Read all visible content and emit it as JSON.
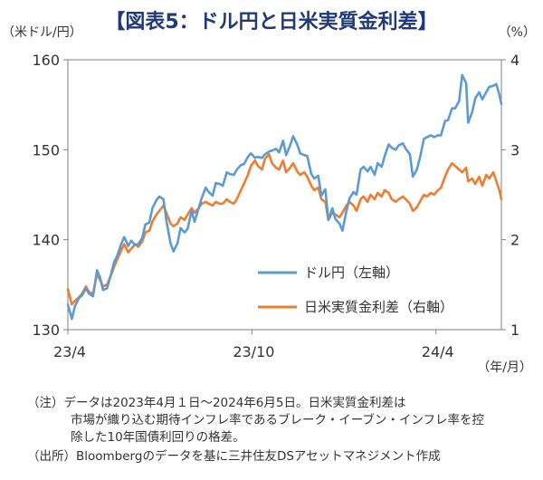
{
  "title": "【図表5：ドル円と日米実質金利差】",
  "chart_data": {
    "type": "line",
    "ylabel_left": "（米ドル/円）",
    "ylabel_right": "（%）",
    "xlabel": "（年/月）",
    "ylim_left": [
      130,
      160
    ],
    "ylim_right": [
      1,
      4
    ],
    "yticks_left": [
      "130",
      "140",
      "150",
      "160"
    ],
    "yticks_right": [
      "1",
      "2",
      "3",
      "4"
    ],
    "x_ticks": [
      {
        "date": "2023-04-01",
        "label": "23/4"
      },
      {
        "date": "2023-10-01",
        "label": "23/10"
      },
      {
        "date": "2024-04-01",
        "label": "24/4"
      }
    ],
    "x_range": [
      "2023-04-01",
      "2024-06-05"
    ],
    "legend_position": "lower-right",
    "series": [
      {
        "name": "ドル円（左軸）",
        "axis": "left",
        "color": "#5b9bd5",
        "points": [
          [
            "2023-04-01",
            132.8
          ],
          [
            "2023-04-05",
            131.2
          ],
          [
            "2023-04-08",
            132.6
          ],
          [
            "2023-04-12",
            133.5
          ],
          [
            "2023-04-15",
            133.8
          ],
          [
            "2023-04-19",
            134.6
          ],
          [
            "2023-04-22",
            134.0
          ],
          [
            "2023-04-26",
            133.7
          ],
          [
            "2023-04-30",
            136.6
          ],
          [
            "2023-05-03",
            135.8
          ],
          [
            "2023-05-06",
            134.4
          ],
          [
            "2023-05-10",
            134.6
          ],
          [
            "2023-05-13",
            135.8
          ],
          [
            "2023-05-17",
            137.5
          ],
          [
            "2023-05-20",
            138.2
          ],
          [
            "2023-05-24",
            139.5
          ],
          [
            "2023-05-27",
            140.3
          ],
          [
            "2023-05-31",
            139.3
          ],
          [
            "2023-06-03",
            139.9
          ],
          [
            "2023-06-07",
            139.4
          ],
          [
            "2023-06-10",
            139.5
          ],
          [
            "2023-06-14",
            140.2
          ],
          [
            "2023-06-17",
            141.7
          ],
          [
            "2023-06-21",
            141.9
          ],
          [
            "2023-06-24",
            143.5
          ],
          [
            "2023-06-28",
            144.4
          ],
          [
            "2023-07-01",
            144.8
          ],
          [
            "2023-07-05",
            144.5
          ],
          [
            "2023-07-08",
            142.1
          ],
          [
            "2023-07-12",
            139.6
          ],
          [
            "2023-07-15",
            138.7
          ],
          [
            "2023-07-19",
            139.6
          ],
          [
            "2023-07-22",
            141.3
          ],
          [
            "2023-07-26",
            140.8
          ],
          [
            "2023-07-29",
            141.2
          ],
          [
            "2023-08-02",
            143.2
          ],
          [
            "2023-08-05",
            142.0
          ],
          [
            "2023-08-09",
            143.5
          ],
          [
            "2023-08-12",
            144.6
          ],
          [
            "2023-08-16",
            145.8
          ],
          [
            "2023-08-19",
            145.3
          ],
          [
            "2023-08-23",
            144.9
          ],
          [
            "2023-08-26",
            146.3
          ],
          [
            "2023-08-30",
            146.2
          ],
          [
            "2023-09-02",
            146.0
          ],
          [
            "2023-09-06",
            147.5
          ],
          [
            "2023-09-09",
            147.3
          ],
          [
            "2023-09-13",
            147.2
          ],
          [
            "2023-09-16",
            147.8
          ],
          [
            "2023-09-20",
            148.3
          ],
          [
            "2023-09-23",
            148.4
          ],
          [
            "2023-09-27",
            149.2
          ],
          [
            "2023-09-30",
            149.6
          ],
          [
            "2023-10-04",
            149.1
          ],
          [
            "2023-10-07",
            149.2
          ],
          [
            "2023-10-11",
            149.1
          ],
          [
            "2023-10-14",
            149.5
          ],
          [
            "2023-10-18",
            149.8
          ],
          [
            "2023-10-21",
            149.9
          ],
          [
            "2023-10-25",
            150.1
          ],
          [
            "2023-10-28",
            149.7
          ],
          [
            "2023-11-01",
            151.0
          ],
          [
            "2023-11-04",
            149.4
          ],
          [
            "2023-11-08",
            150.5
          ],
          [
            "2023-11-11",
            151.5
          ],
          [
            "2023-11-15",
            150.6
          ],
          [
            "2023-11-18",
            149.6
          ],
          [
            "2023-11-22",
            149.4
          ],
          [
            "2023-11-25",
            149.3
          ],
          [
            "2023-11-29",
            147.3
          ],
          [
            "2023-12-02",
            146.8
          ],
          [
            "2023-12-06",
            147.1
          ],
          [
            "2023-12-09",
            144.9
          ],
          [
            "2023-12-13",
            145.6
          ],
          [
            "2023-12-16",
            142.2
          ],
          [
            "2023-12-20",
            143.5
          ],
          [
            "2023-12-23",
            142.3
          ],
          [
            "2023-12-27",
            141.8
          ],
          [
            "2023-12-30",
            141.0
          ],
          [
            "2024-01-03",
            143.2
          ],
          [
            "2024-01-06",
            144.6
          ],
          [
            "2024-01-10",
            145.3
          ],
          [
            "2024-01-13",
            145.0
          ],
          [
            "2024-01-17",
            147.8
          ],
          [
            "2024-01-20",
            148.1
          ],
          [
            "2024-01-24",
            147.6
          ],
          [
            "2024-01-27",
            148.1
          ],
          [
            "2024-01-31",
            147.2
          ],
          [
            "2024-02-03",
            148.5
          ],
          [
            "2024-02-07",
            148.1
          ],
          [
            "2024-02-10",
            149.3
          ],
          [
            "2024-02-14",
            150.6
          ],
          [
            "2024-02-17",
            150.2
          ],
          [
            "2024-02-21",
            150.0
          ],
          [
            "2024-02-24",
            150.5
          ],
          [
            "2024-02-28",
            150.7
          ],
          [
            "2024-03-02",
            150.1
          ],
          [
            "2024-03-06",
            149.5
          ],
          [
            "2024-03-09",
            147.0
          ],
          [
            "2024-03-13",
            147.8
          ],
          [
            "2024-03-16",
            149.1
          ],
          [
            "2024-03-20",
            151.2
          ],
          [
            "2024-03-23",
            151.4
          ],
          [
            "2024-03-27",
            151.6
          ],
          [
            "2024-03-30",
            151.4
          ],
          [
            "2024-04-03",
            151.6
          ],
          [
            "2024-04-06",
            151.6
          ],
          [
            "2024-04-10",
            153.2
          ],
          [
            "2024-04-13",
            153.3
          ],
          [
            "2024-04-17",
            154.6
          ],
          [
            "2024-04-20",
            154.6
          ],
          [
            "2024-04-24",
            155.4
          ],
          [
            "2024-04-27",
            158.3
          ],
          [
            "2024-05-01",
            157.4
          ],
          [
            "2024-05-03",
            153.0
          ],
          [
            "2024-05-07",
            154.2
          ],
          [
            "2024-05-10",
            155.7
          ],
          [
            "2024-05-14",
            156.4
          ],
          [
            "2024-05-17",
            155.6
          ],
          [
            "2024-05-21",
            156.4
          ],
          [
            "2024-05-24",
            157.0
          ],
          [
            "2024-05-28",
            157.1
          ],
          [
            "2024-05-31",
            157.3
          ],
          [
            "2024-06-03",
            156.1
          ],
          [
            "2024-06-05",
            155.1
          ]
        ]
      },
      {
        "name": "日米実質金利差（右軸）",
        "axis": "right",
        "color": "#ed7d31",
        "points": [
          [
            "2023-04-01",
            1.45
          ],
          [
            "2023-04-05",
            1.28
          ],
          [
            "2023-04-08",
            1.32
          ],
          [
            "2023-04-12",
            1.36
          ],
          [
            "2023-04-15",
            1.4
          ],
          [
            "2023-04-19",
            1.48
          ],
          [
            "2023-04-22",
            1.42
          ],
          [
            "2023-04-26",
            1.4
          ],
          [
            "2023-04-30",
            1.62
          ],
          [
            "2023-05-03",
            1.55
          ],
          [
            "2023-05-06",
            1.48
          ],
          [
            "2023-05-10",
            1.5
          ],
          [
            "2023-05-13",
            1.58
          ],
          [
            "2023-05-17",
            1.7
          ],
          [
            "2023-05-20",
            1.78
          ],
          [
            "2023-05-24",
            1.88
          ],
          [
            "2023-05-27",
            1.95
          ],
          [
            "2023-05-31",
            1.86
          ],
          [
            "2023-06-03",
            1.9
          ],
          [
            "2023-06-07",
            1.95
          ],
          [
            "2023-06-10",
            1.92
          ],
          [
            "2023-06-14",
            1.98
          ],
          [
            "2023-06-17",
            2.08
          ],
          [
            "2023-06-21",
            2.1
          ],
          [
            "2023-06-24",
            2.2
          ],
          [
            "2023-06-28",
            2.28
          ],
          [
            "2023-07-01",
            2.32
          ],
          [
            "2023-07-05",
            2.38
          ],
          [
            "2023-07-08",
            2.3
          ],
          [
            "2023-07-12",
            2.18
          ],
          [
            "2023-07-15",
            2.15
          ],
          [
            "2023-07-19",
            2.18
          ],
          [
            "2023-07-22",
            2.25
          ],
          [
            "2023-07-26",
            2.22
          ],
          [
            "2023-07-29",
            2.28
          ],
          [
            "2023-08-02",
            2.35
          ],
          [
            "2023-08-05",
            2.3
          ],
          [
            "2023-08-09",
            2.35
          ],
          [
            "2023-08-12",
            2.4
          ],
          [
            "2023-08-16",
            2.42
          ],
          [
            "2023-08-19",
            2.4
          ],
          [
            "2023-08-23",
            2.38
          ],
          [
            "2023-08-26",
            2.42
          ],
          [
            "2023-08-30",
            2.4
          ],
          [
            "2023-09-02",
            2.4
          ],
          [
            "2023-09-06",
            2.45
          ],
          [
            "2023-09-09",
            2.42
          ],
          [
            "2023-09-13",
            2.4
          ],
          [
            "2023-09-16",
            2.45
          ],
          [
            "2023-09-20",
            2.55
          ],
          [
            "2023-09-23",
            2.62
          ],
          [
            "2023-09-27",
            2.72
          ],
          [
            "2023-09-30",
            2.82
          ],
          [
            "2023-10-04",
            2.88
          ],
          [
            "2023-10-07",
            2.82
          ],
          [
            "2023-10-11",
            2.78
          ],
          [
            "2023-10-14",
            2.9
          ],
          [
            "2023-10-18",
            2.95
          ],
          [
            "2023-10-21",
            2.85
          ],
          [
            "2023-10-25",
            2.8
          ],
          [
            "2023-10-28",
            2.78
          ],
          [
            "2023-11-01",
            2.88
          ],
          [
            "2023-11-04",
            2.75
          ],
          [
            "2023-11-08",
            2.8
          ],
          [
            "2023-11-11",
            2.85
          ],
          [
            "2023-11-15",
            2.76
          ],
          [
            "2023-11-18",
            2.72
          ],
          [
            "2023-11-22",
            2.75
          ],
          [
            "2023-11-25",
            2.7
          ],
          [
            "2023-11-29",
            2.6
          ],
          [
            "2023-12-02",
            2.55
          ],
          [
            "2023-12-06",
            2.58
          ],
          [
            "2023-12-09",
            2.45
          ],
          [
            "2023-12-13",
            2.42
          ],
          [
            "2023-12-16",
            2.22
          ],
          [
            "2023-12-20",
            2.3
          ],
          [
            "2023-12-23",
            2.28
          ],
          [
            "2023-12-27",
            2.25
          ],
          [
            "2023-12-30",
            2.3
          ],
          [
            "2024-01-03",
            2.38
          ],
          [
            "2024-01-06",
            2.42
          ],
          [
            "2024-01-10",
            2.38
          ],
          [
            "2024-01-13",
            2.32
          ],
          [
            "2024-01-17",
            2.45
          ],
          [
            "2024-01-20",
            2.48
          ],
          [
            "2024-01-24",
            2.42
          ],
          [
            "2024-01-27",
            2.5
          ],
          [
            "2024-01-31",
            2.45
          ],
          [
            "2024-02-03",
            2.52
          ],
          [
            "2024-02-07",
            2.48
          ],
          [
            "2024-02-10",
            2.55
          ],
          [
            "2024-02-14",
            2.52
          ],
          [
            "2024-02-17",
            2.45
          ],
          [
            "2024-02-21",
            2.42
          ],
          [
            "2024-02-24",
            2.45
          ],
          [
            "2024-02-28",
            2.48
          ],
          [
            "2024-03-02",
            2.45
          ],
          [
            "2024-03-06",
            2.4
          ],
          [
            "2024-03-09",
            2.32
          ],
          [
            "2024-03-13",
            2.36
          ],
          [
            "2024-03-16",
            2.42
          ],
          [
            "2024-03-20",
            2.5
          ],
          [
            "2024-03-23",
            2.48
          ],
          [
            "2024-03-27",
            2.52
          ],
          [
            "2024-03-30",
            2.5
          ],
          [
            "2024-04-03",
            2.55
          ],
          [
            "2024-04-06",
            2.58
          ],
          [
            "2024-04-10",
            2.7
          ],
          [
            "2024-04-13",
            2.78
          ],
          [
            "2024-04-17",
            2.85
          ],
          [
            "2024-04-20",
            2.82
          ],
          [
            "2024-04-24",
            2.78
          ],
          [
            "2024-04-27",
            2.75
          ],
          [
            "2024-05-01",
            2.8
          ],
          [
            "2024-05-03",
            2.65
          ],
          [
            "2024-05-07",
            2.68
          ],
          [
            "2024-05-10",
            2.62
          ],
          [
            "2024-05-14",
            2.7
          ],
          [
            "2024-05-17",
            2.6
          ],
          [
            "2024-05-21",
            2.72
          ],
          [
            "2024-05-24",
            2.68
          ],
          [
            "2024-05-28",
            2.75
          ],
          [
            "2024-05-31",
            2.65
          ],
          [
            "2024-06-03",
            2.55
          ],
          [
            "2024-06-05",
            2.45
          ]
        ]
      }
    ]
  },
  "notes": {
    "note_prefix": "（注）",
    "note_line1": "データは2023年4月１日～2024年6月5日。日米実質金利差は",
    "note_line2": "市場が織り込む期待インフレ率であるブレーク・イーブン・インフレ率を控",
    "note_line3": "除した10年国債利回りの格差。",
    "source_prefix": "（出所）",
    "source_text": "Bloombergのデータを基に三井住友DSアセットマネジメント作成"
  }
}
